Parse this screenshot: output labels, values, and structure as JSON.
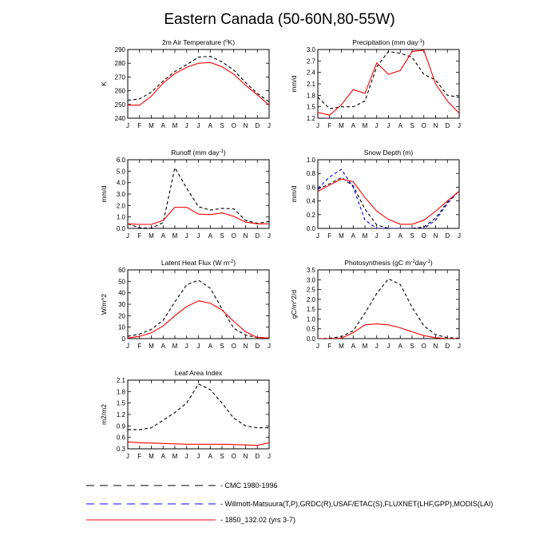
{
  "figure_title": "Eastern Canada (50-60N,80-55W)",
  "legend": {
    "placement": "bottom-left",
    "entries": [
      {
        "label": "CMC 1980-1996",
        "color": "#000000",
        "dash": "dashed"
      },
      {
        "label": "Willmott-Matsuura(T,P),GRDC(R),USAF/ETAC(S),FLUXNET(LHF,GPP),MODIS(LAI)",
        "color": "#0000ff",
        "dash": "dashed"
      },
      {
        "label": "1850_132.02 (yrs 3-7)",
        "color": "#ff0000",
        "dash": "solid"
      }
    ]
  },
  "chart_data": [
    {
      "type": "line",
      "title_base": "2m Air Temperature (",
      "title_sup": "o",
      "title_rest": "K)",
      "ylabel": "K",
      "ylim": [
        240,
        290
      ],
      "yticks": [
        "240",
        "250",
        "260",
        "270",
        "280",
        "290"
      ],
      "categories": [
        "J",
        "F",
        "M",
        "A",
        "M",
        "J",
        "J",
        "A",
        "S",
        "O",
        "N",
        "D",
        "J"
      ],
      "series": [
        {
          "source": "CMC 1980-1996",
          "color": "#000000",
          "dash": "dashed",
          "values": [
            253,
            254,
            259,
            267,
            274,
            279,
            284.5,
            285,
            281,
            275,
            266,
            258,
            252
          ]
        },
        {
          "source": "1850_132.02 (yrs 3-7)",
          "color": "#ff0000",
          "dash": "solid",
          "values": [
            249.5,
            249.5,
            256,
            265.5,
            272.5,
            277,
            280,
            280.5,
            277.5,
            272,
            264,
            257,
            249.5
          ]
        }
      ]
    },
    {
      "type": "line",
      "title_base": "Precipitation (mm day",
      "title_sup": "-1",
      "title_rest": ")",
      "ylabel": "mm/d",
      "ylim": [
        1.2,
        3.0
      ],
      "yticks": [
        "1.2",
        "1.5",
        "1.8",
        "2.1",
        "2.4",
        "2.7",
        "3.0"
      ],
      "categories": [
        "J",
        "F",
        "M",
        "A",
        "M",
        "J",
        "J",
        "A",
        "S",
        "O",
        "N",
        "D",
        "J"
      ],
      "series": [
        {
          "source": "CMC 1980-1996",
          "color": "#000000",
          "dash": "dashed",
          "values": [
            1.75,
            1.45,
            1.5,
            1.5,
            1.65,
            2.55,
            2.95,
            2.9,
            2.8,
            2.35,
            2.2,
            1.8,
            1.75
          ]
        },
        {
          "source": "1850_132.02 (yrs 3-7)",
          "color": "#ff0000",
          "dash": "solid",
          "values": [
            1.35,
            1.28,
            1.55,
            1.95,
            1.85,
            2.65,
            2.35,
            2.45,
            2.95,
            2.98,
            2.1,
            1.65,
            1.33
          ]
        }
      ]
    },
    {
      "type": "line",
      "title_base": "Runoff (mm day",
      "title_sup": "-1",
      "title_rest": ")",
      "ylabel": "mm/d",
      "ylim": [
        0,
        6.0
      ],
      "yticks": [
        "0.0",
        "1.0",
        "2.0",
        "3.0",
        "4.0",
        "5.0",
        "6.0"
      ],
      "categories": [
        "J",
        "F",
        "M",
        "A",
        "M",
        "J",
        "J",
        "A",
        "S",
        "O",
        "N",
        "D",
        "J"
      ],
      "series": [
        {
          "source": "CMC 1980-1996",
          "color": "#000000",
          "dash": "dashed",
          "values": [
            0.4,
            0.05,
            0.02,
            0.5,
            5.3,
            3.5,
            1.9,
            1.6,
            1.75,
            1.7,
            0.7,
            0.45,
            0.6
          ]
        },
        {
          "source": "1850_132.02 (yrs 3-7)",
          "color": "#ff0000",
          "dash": "solid",
          "values": [
            0.4,
            0.35,
            0.35,
            0.7,
            1.85,
            1.85,
            1.25,
            1.2,
            1.35,
            1.05,
            0.55,
            0.4,
            0.4
          ]
        }
      ]
    },
    {
      "type": "line",
      "title_base": "Snow Depth (m)",
      "title_sup": "",
      "title_rest": "",
      "ylabel": "mm/d",
      "ylim": [
        0,
        1.0
      ],
      "yticks": [
        "0.0",
        "0.2",
        "0.4",
        "0.6",
        "0.8",
        "1.0"
      ],
      "categories": [
        "J",
        "F",
        "M",
        "A",
        "M",
        "J",
        "J",
        "A",
        "S",
        "O",
        "N",
        "D",
        "J"
      ],
      "series": [
        {
          "source": "CMC 1980-1996",
          "color": "#000000",
          "dash": "dashed",
          "values": [
            0.57,
            0.65,
            0.74,
            0.62,
            0.28,
            0.05,
            0.0,
            0.0,
            0.0,
            0.02,
            0.15,
            0.38,
            0.55
          ]
        },
        {
          "source": "Willmott-Matsuura(T,P),GRDC(R),USAF/ETAC(S),FLUXNET(LHF,GPP),MODIS(LAI)",
          "color": "#0000ff",
          "dash": "dashed",
          "values": [
            0.58,
            0.75,
            0.86,
            0.6,
            0.12,
            0.0,
            0.0,
            0.0,
            0.0,
            0.0,
            0.12,
            0.36,
            0.55
          ]
        },
        {
          "source": "1850_132.02 (yrs 3-7)",
          "color": "#ff0000",
          "dash": "solid",
          "values": [
            0.54,
            0.63,
            0.72,
            0.68,
            0.45,
            0.25,
            0.13,
            0.06,
            0.06,
            0.12,
            0.25,
            0.4,
            0.54
          ]
        }
      ]
    },
    {
      "type": "line",
      "title_base": "Latent Heat Flux (W m",
      "title_sup": "-2",
      "title_rest": ")",
      "ylabel": "W/m^2",
      "ylim": [
        0,
        60
      ],
      "yticks": [
        "0",
        "10",
        "20",
        "30",
        "40",
        "50",
        "60"
      ],
      "categories": [
        "J",
        "F",
        "M",
        "A",
        "M",
        "J",
        "J",
        "A",
        "S",
        "O",
        "N",
        "D",
        "J"
      ],
      "series": [
        {
          "source": "CMC 1980-1996",
          "color": "#000000",
          "dash": "dashed",
          "values": [
            2,
            4,
            8,
            16,
            32,
            47,
            51,
            44,
            26,
            9,
            3,
            1,
            0.5
          ]
        },
        {
          "source": "1850_132.02 (yrs 3-7)",
          "color": "#ff0000",
          "dash": "solid",
          "values": [
            0.5,
            2,
            5,
            11,
            20,
            28,
            33,
            31,
            25,
            15,
            6,
            1,
            0.5
          ]
        }
      ]
    },
    {
      "type": "line",
      "title_base": "Photosynthesis (gC m",
      "title_sup": "-2",
      "title_rest": "day",
      "title_sup2": "-1",
      "title_end": ")",
      "ylabel": "gC/m^2/d",
      "ylim": [
        0,
        3.5
      ],
      "yticks": [
        "0.0",
        "0.5",
        "1.0",
        "1.5",
        "2.0",
        "2.5",
        "3.0",
        "3.5"
      ],
      "categories": [
        "J",
        "F",
        "M",
        "A",
        "M",
        "J",
        "J",
        "A",
        "S",
        "O",
        "N",
        "D",
        "J"
      ],
      "series": [
        {
          "source": "CMC 1980-1996",
          "color": "#000000",
          "dash": "dashed",
          "values": [
            0,
            0.02,
            0.1,
            0.4,
            1.3,
            2.3,
            3.05,
            2.75,
            1.6,
            0.65,
            0.2,
            0.05,
            0.02
          ]
        },
        {
          "source": "1850_132.02 (yrs 3-7)",
          "color": "#ff0000",
          "dash": "solid",
          "values": [
            0,
            0,
            0.02,
            0.3,
            0.7,
            0.75,
            0.7,
            0.55,
            0.35,
            0.15,
            0.05,
            0,
            0
          ]
        }
      ]
    },
    {
      "type": "line",
      "title_base": "Leaf Area Index",
      "title_sup": "",
      "title_rest": "",
      "ylabel": "m2/m2",
      "ylim": [
        0.3,
        2.1
      ],
      "yticks": [
        "0.3",
        "0.6",
        "0.9",
        "1.2",
        "1.5",
        "1.8",
        "2.1"
      ],
      "categories": [
        "J",
        "F",
        "M",
        "A",
        "M",
        "J",
        "J",
        "A",
        "S",
        "O",
        "N",
        "D",
        "J"
      ],
      "series": [
        {
          "source": "CMC 1980-1996",
          "color": "#000000",
          "dash": "dashed",
          "values": [
            0.8,
            0.8,
            0.85,
            1.05,
            1.25,
            1.5,
            2.0,
            1.85,
            1.5,
            1.1,
            0.9,
            0.85,
            0.85
          ]
        },
        {
          "source": "1850_132.02 (yrs 3-7)",
          "color": "#ff0000",
          "dash": "solid",
          "values": [
            0.48,
            0.46,
            0.45,
            0.44,
            0.43,
            0.42,
            0.42,
            0.42,
            0.42,
            0.41,
            0.4,
            0.39,
            0.46
          ]
        }
      ]
    }
  ]
}
